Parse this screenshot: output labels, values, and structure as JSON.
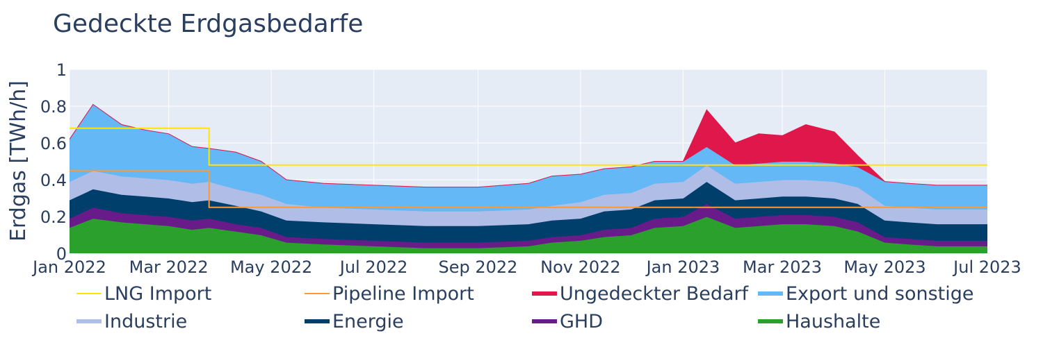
{
  "chart_data": {
    "type": "area",
    "title": "Gedeckte Erdgasbedarfe",
    "ylabel": "Erdgas [TWh/h]",
    "xlabel": "",
    "ylim": [
      0,
      1
    ],
    "yticks": [
      0,
      0.2,
      0.4,
      0.6,
      0.8,
      1
    ],
    "ytick_labels": [
      "0",
      "0.2",
      "0.4",
      "0.6",
      "0.8",
      "1"
    ],
    "xlim": [
      "2022-01-01",
      "2023-07-01"
    ],
    "xticks": [
      "2022-01-01",
      "2022-03-01",
      "2022-05-01",
      "2022-07-01",
      "2022-09-01",
      "2022-11-01",
      "2023-01-01",
      "2023-03-01",
      "2023-05-01",
      "2023-07-01"
    ],
    "xtick_labels": [
      "Jan 2022",
      "Mar 2022",
      "May 2022",
      "Jul 2022",
      "Sep 2022",
      "Nov 2022",
      "Jan 2023",
      "Mar 2023",
      "May 2023",
      "Jul 2023"
    ],
    "grid": true,
    "legend_position": "bottom",
    "x": [
      "2022-01-01",
      "2022-01-15",
      "2022-02-01",
      "2022-02-15",
      "2022-03-01",
      "2022-03-15",
      "2022-03-25",
      "2022-04-10",
      "2022-04-25",
      "2022-05-10",
      "2022-06-01",
      "2022-07-01",
      "2022-08-01",
      "2022-09-01",
      "2022-10-01",
      "2022-10-15",
      "2022-11-01",
      "2022-11-15",
      "2022-12-01",
      "2022-12-15",
      "2023-01-01",
      "2023-01-15",
      "2023-02-01",
      "2023-02-15",
      "2023-03-01",
      "2023-03-15",
      "2023-04-01",
      "2023-04-15",
      "2023-05-01",
      "2023-05-15",
      "2023-06-01",
      "2023-06-15",
      "2023-07-01"
    ],
    "series": [
      {
        "name": "Haushalte",
        "color": "#2ca02c",
        "kind": "stack",
        "values": [
          0.14,
          0.19,
          0.17,
          0.16,
          0.15,
          0.13,
          0.14,
          0.12,
          0.1,
          0.06,
          0.05,
          0.04,
          0.03,
          0.03,
          0.04,
          0.06,
          0.07,
          0.09,
          0.1,
          0.14,
          0.15,
          0.2,
          0.14,
          0.15,
          0.16,
          0.16,
          0.15,
          0.12,
          0.06,
          0.05,
          0.04,
          0.04,
          0.04
        ]
      },
      {
        "name": "GHD",
        "color": "#6a1b8a",
        "kind": "stack",
        "values": [
          0.05,
          0.06,
          0.05,
          0.05,
          0.05,
          0.05,
          0.05,
          0.04,
          0.04,
          0.03,
          0.03,
          0.03,
          0.03,
          0.03,
          0.03,
          0.03,
          0.03,
          0.04,
          0.04,
          0.05,
          0.05,
          0.07,
          0.05,
          0.05,
          0.05,
          0.05,
          0.05,
          0.05,
          0.03,
          0.03,
          0.03,
          0.03,
          0.03
        ]
      },
      {
        "name": "Energie",
        "color": "#003f6b",
        "kind": "stack",
        "values": [
          0.1,
          0.1,
          0.1,
          0.1,
          0.1,
          0.1,
          0.1,
          0.1,
          0.09,
          0.09,
          0.09,
          0.09,
          0.09,
          0.09,
          0.09,
          0.09,
          0.09,
          0.1,
          0.1,
          0.1,
          0.1,
          0.12,
          0.1,
          0.1,
          0.1,
          0.1,
          0.1,
          0.1,
          0.09,
          0.09,
          0.09,
          0.09,
          0.09
        ]
      },
      {
        "name": "Industrie",
        "color": "#b0bde6",
        "kind": "stack",
        "values": [
          0.1,
          0.1,
          0.1,
          0.1,
          0.1,
          0.1,
          0.1,
          0.09,
          0.09,
          0.09,
          0.08,
          0.08,
          0.08,
          0.08,
          0.08,
          0.08,
          0.09,
          0.09,
          0.09,
          0.09,
          0.09,
          0.09,
          0.09,
          0.09,
          0.09,
          0.09,
          0.09,
          0.09,
          0.08,
          0.08,
          0.08,
          0.08,
          0.08
        ]
      },
      {
        "name": "Export und sonstige",
        "color": "#63b8f5",
        "kind": "stack",
        "values": [
          0.23,
          0.36,
          0.28,
          0.26,
          0.25,
          0.2,
          0.18,
          0.2,
          0.18,
          0.13,
          0.13,
          0.13,
          0.13,
          0.13,
          0.14,
          0.16,
          0.15,
          0.14,
          0.14,
          0.12,
          0.11,
          0.1,
          0.1,
          0.1,
          0.1,
          0.1,
          0.1,
          0.11,
          0.13,
          0.13,
          0.13,
          0.13,
          0.13
        ]
      },
      {
        "name": "Ungedeckter Bedarf",
        "color": "#e0174a",
        "kind": "stack",
        "values": [
          0,
          0,
          0,
          0,
          0,
          0,
          0,
          0,
          0,
          0,
          0,
          0,
          0,
          0,
          0,
          0,
          0,
          0,
          0,
          0,
          0,
          0.2,
          0.12,
          0.16,
          0.14,
          0.2,
          0.17,
          0.06,
          0,
          0,
          0,
          0,
          0
        ]
      },
      {
        "name": "Pipeline Import",
        "color": "#ff9933",
        "kind": "line",
        "values": [
          0.45,
          0.45,
          0.45,
          0.45,
          0.45,
          0.45,
          0.25,
          0.25,
          0.25,
          0.25,
          0.25,
          0.25,
          0.25,
          0.25,
          0.25,
          0.25,
          0.25,
          0.25,
          0.25,
          0.25,
          0.25,
          0.25,
          0.25,
          0.25,
          0.25,
          0.25,
          0.25,
          0.25,
          0.25,
          0.25,
          0.25,
          0.25,
          0.25
        ]
      },
      {
        "name": "LNG Import",
        "color": "#ffe600",
        "kind": "line",
        "values": [
          0.68,
          0.68,
          0.68,
          0.68,
          0.68,
          0.68,
          0.48,
          0.48,
          0.48,
          0.48,
          0.48,
          0.48,
          0.48,
          0.48,
          0.48,
          0.48,
          0.48,
          0.48,
          0.48,
          0.48,
          0.48,
          0.48,
          0.48,
          0.48,
          0.48,
          0.48,
          0.48,
          0.48,
          0.48,
          0.48,
          0.48,
          0.48,
          0.48
        ]
      }
    ],
    "legend": [
      {
        "name": "LNG Import",
        "color": "#ffe600",
        "kind": "line"
      },
      {
        "name": "Pipeline Import",
        "color": "#ff9933",
        "kind": "line"
      },
      {
        "name": "Ungedeckter Bedarf",
        "color": "#e0174a",
        "kind": "area"
      },
      {
        "name": "Export und sonstige",
        "color": "#63b8f5",
        "kind": "area"
      },
      {
        "name": "Industrie",
        "color": "#b0bde6",
        "kind": "area"
      },
      {
        "name": "Energie",
        "color": "#003f6b",
        "kind": "area"
      },
      {
        "name": "GHD",
        "color": "#6a1b8a",
        "kind": "area"
      },
      {
        "name": "Haushalte",
        "color": "#2ca02c",
        "kind": "area"
      }
    ]
  }
}
